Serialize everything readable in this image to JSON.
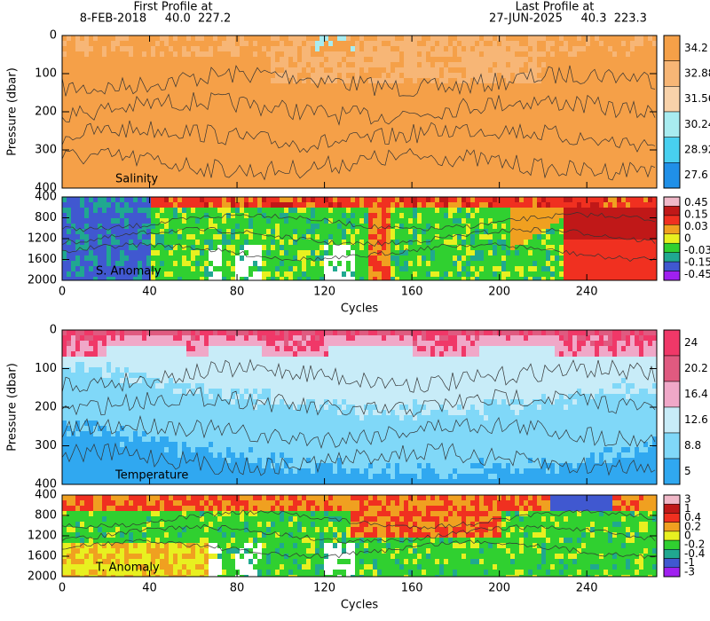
{
  "header": {
    "first_label": "First Profile at",
    "first_info": "8-FEB-2018     40.0  227.2",
    "last_label": "Last Profile at",
    "last_info": "27-JUN-2025     40.3  223.3"
  },
  "panels": [
    {
      "label": "Salinity",
      "ylabel": "Pressure (dbar)",
      "yticks": [
        0,
        100,
        200,
        300,
        400
      ],
      "colorbar": {
        "labels": [
          34.2,
          32.88,
          31.56,
          30.24,
          28.92,
          27.6
        ],
        "colors": [
          "#f5a048",
          "#f7b676",
          "#f8d2aa",
          "#a8ecf0",
          "#48d0f0",
          "#2090e8"
        ]
      }
    },
    {
      "label": "S. Anomaly",
      "yticks": [
        400,
        800,
        1200,
        1600,
        2000
      ],
      "colorbar": {
        "labels": [
          0.45,
          0.15,
          0.03,
          0,
          -0.03,
          -0.15,
          -0.45
        ],
        "colors": [
          "#f0b8c8",
          "#c01818",
          "#f03020",
          "#f0a020",
          "#e8f020",
          "#30d030",
          "#20a890",
          "#4058d0",
          "#a020f0"
        ]
      }
    },
    {
      "label": "Temperature",
      "ylabel": "Pressure (dbar)",
      "yticks": [
        0,
        100,
        200,
        300,
        400
      ],
      "colorbar": {
        "labels": [
          24,
          20.2,
          16.4,
          12.6,
          8.8,
          5
        ],
        "colors": [
          "#f03868",
          "#e05a80",
          "#f0a8c8",
          "#c8ecf8",
          "#80d8f8",
          "#30a8f0"
        ]
      }
    },
    {
      "label": "T. Anomaly",
      "yticks": [
        400,
        800,
        1200,
        1600,
        2000
      ],
      "colorbar": {
        "labels": [
          3,
          1,
          0.4,
          0.2,
          0,
          -0.2,
          -0.4,
          -1,
          -3
        ],
        "colors": [
          "#f0b8c8",
          "#c01818",
          "#f03020",
          "#f0a020",
          "#e8f020",
          "#30d030",
          "#20a890",
          "#4058d0",
          "#a020f0"
        ]
      }
    }
  ],
  "xaxes": [
    {
      "ticks": [
        0,
        40,
        80,
        120,
        160,
        200,
        240
      ],
      "label": "Cycles"
    },
    {
      "ticks": [
        0,
        40,
        80,
        120,
        160,
        200,
        240
      ],
      "label": "Cycles"
    }
  ]
}
